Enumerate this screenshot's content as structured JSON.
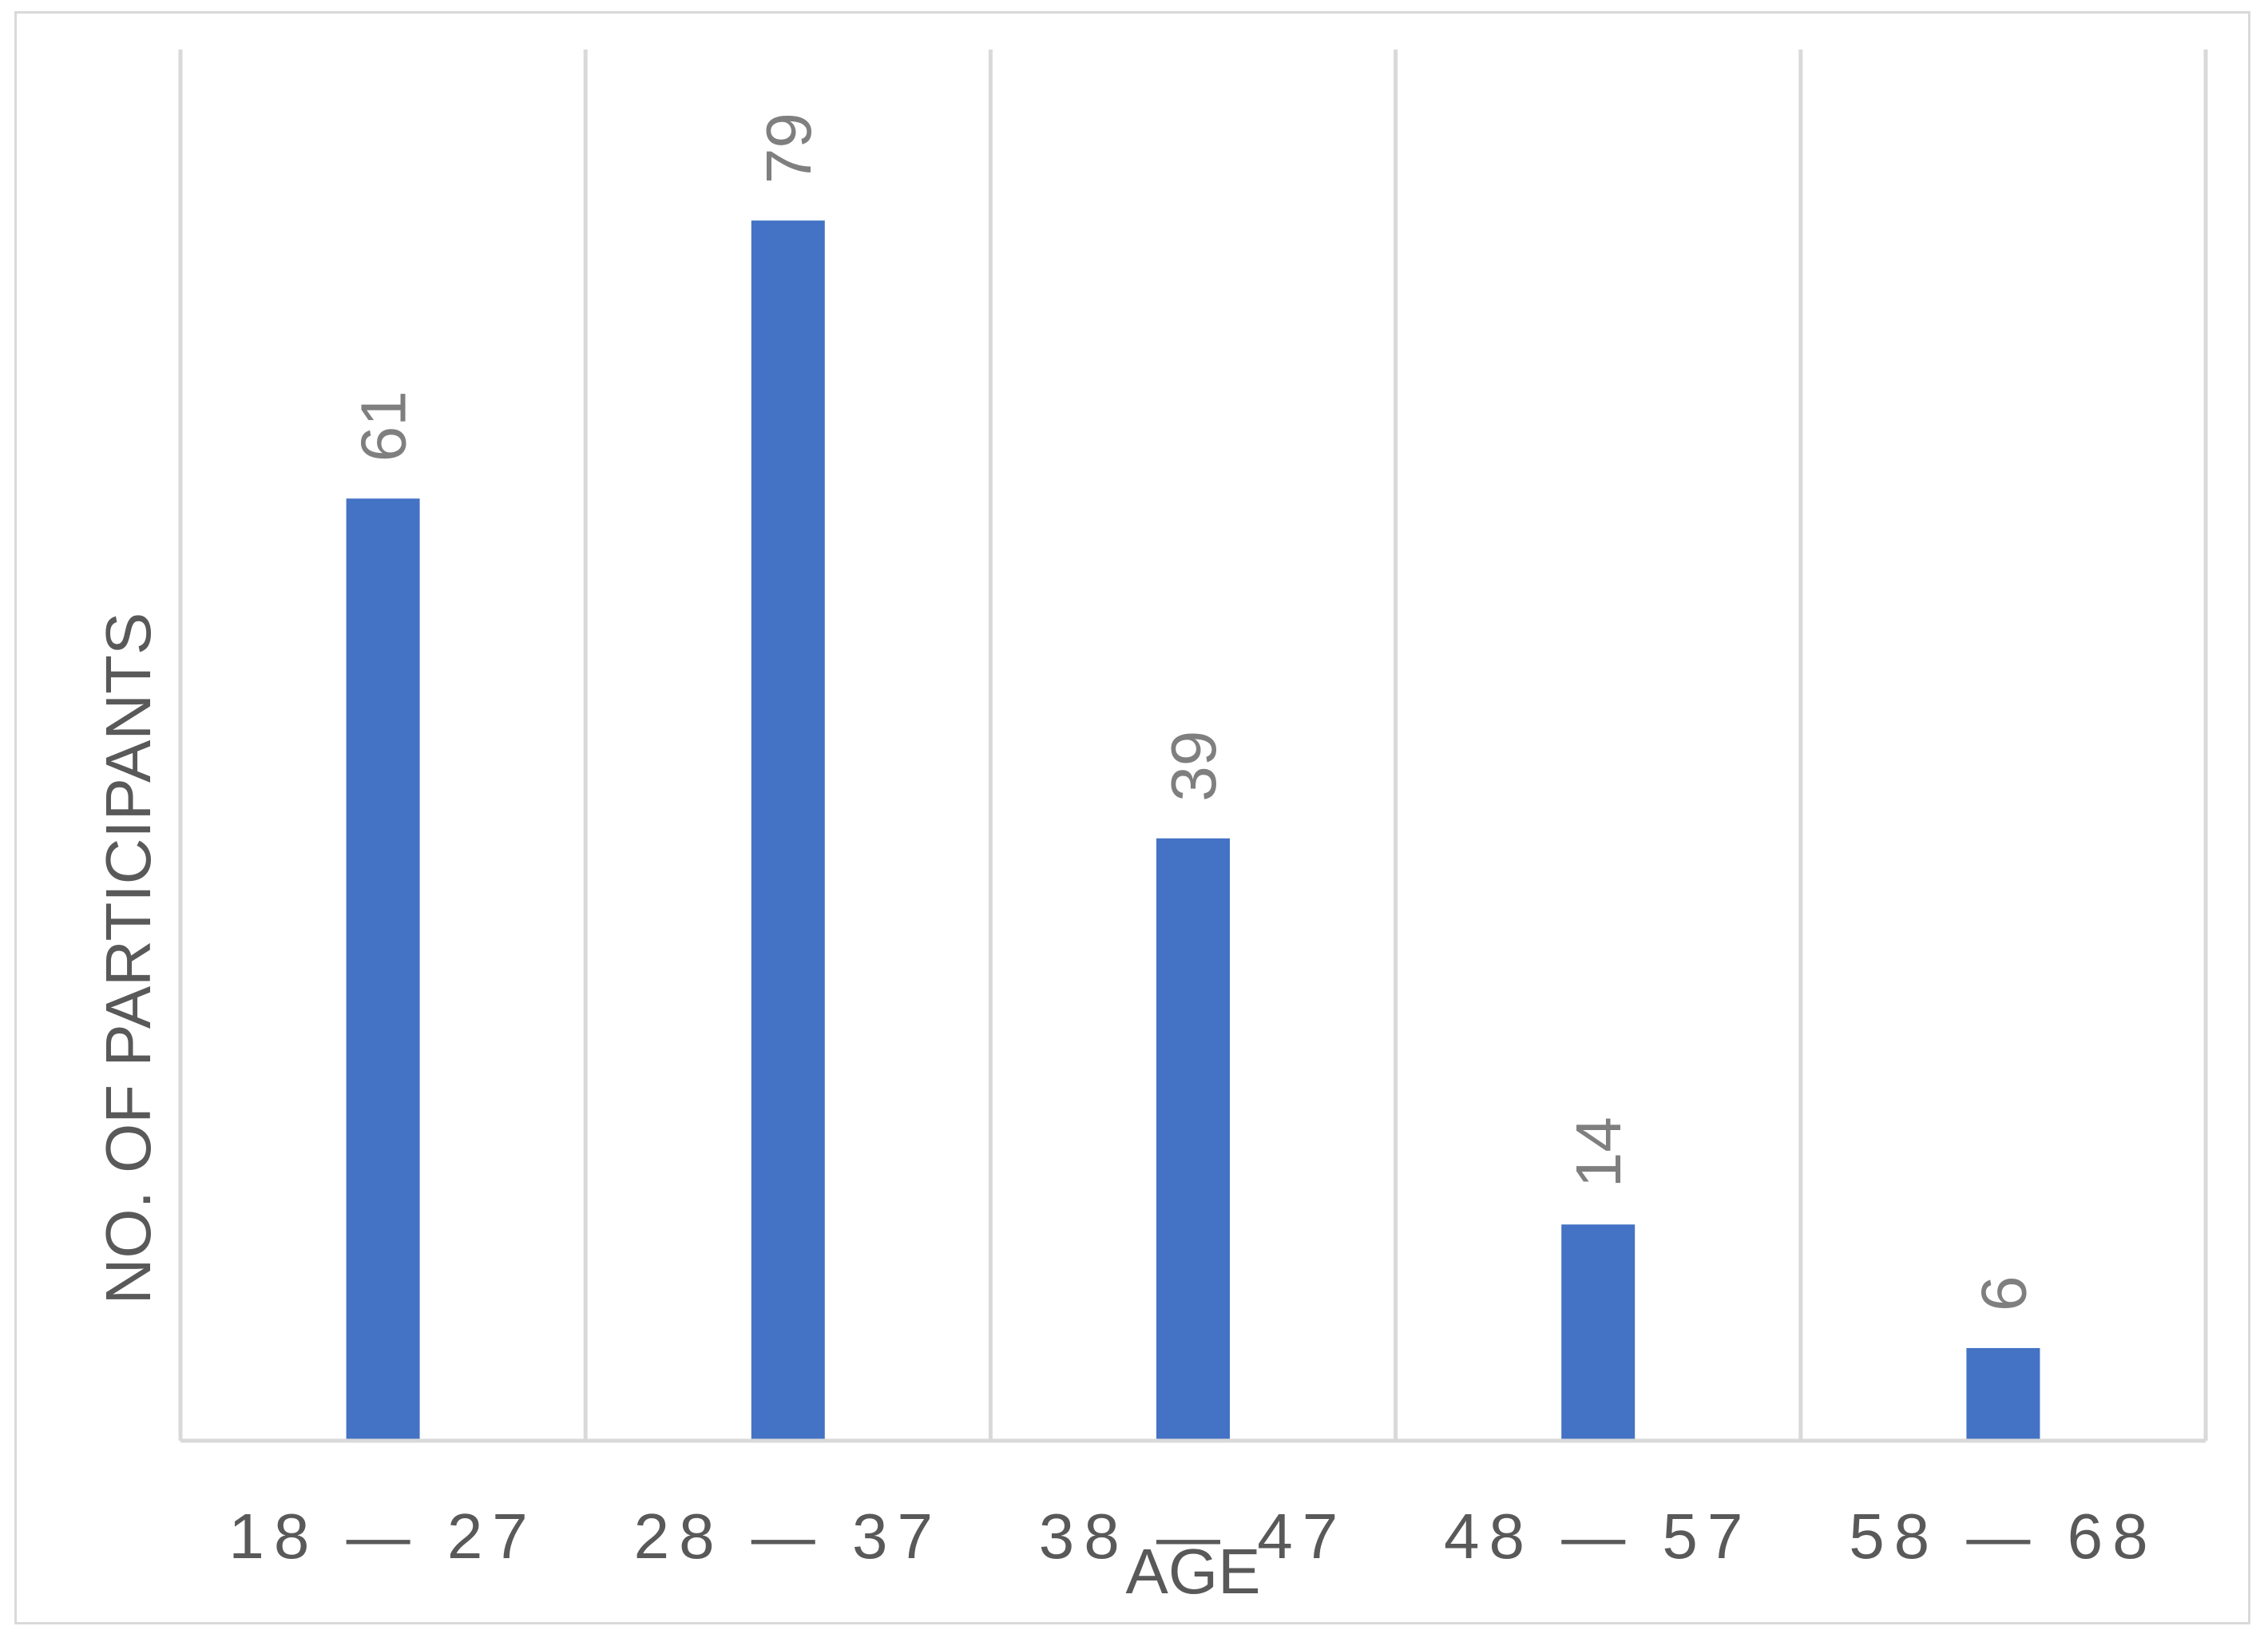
{
  "chart_data": {
    "type": "bar",
    "categories": [
      "18 — 27",
      "28 — 37",
      "38 — 47",
      "48 — 57",
      "58 — 68"
    ],
    "values": [
      61,
      79,
      39,
      14,
      6
    ],
    "data_labels": [
      "61",
      "79",
      "39",
      "14",
      "6"
    ],
    "title": "",
    "xlabel": "AGE",
    "ylabel": "NO. OF PARTICIPANTS",
    "ylim": [
      0,
      90
    ],
    "grid": "vertical lines between categories",
    "legend": "none",
    "bar_color": "#4472c4",
    "grid_color": "#d9d9d9",
    "text_color": "#595959",
    "data_label_color": "#7f7f7f",
    "data_label_orientation": "rotated -90"
  }
}
